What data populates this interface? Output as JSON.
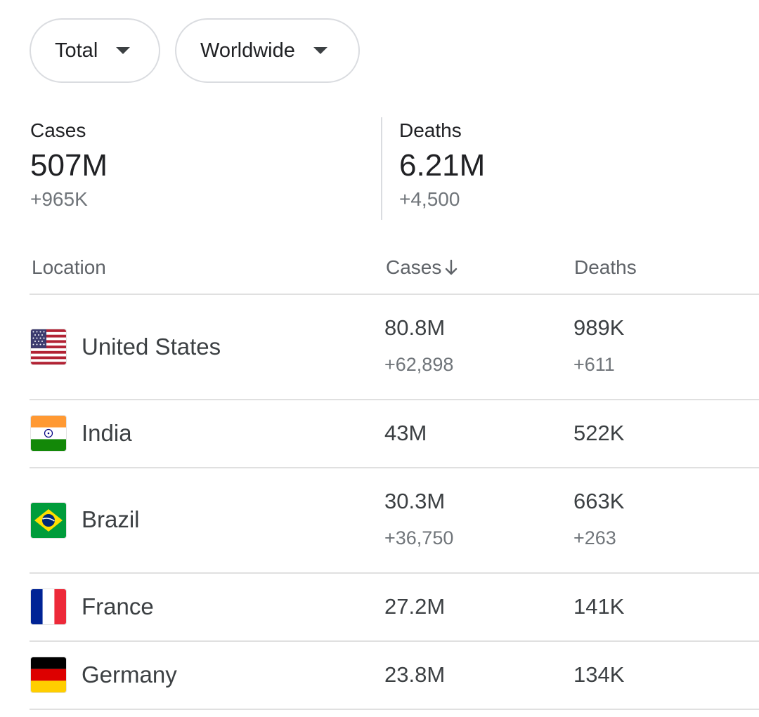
{
  "filters": {
    "metric": "Total",
    "region": "Worldwide"
  },
  "summary": {
    "cases": {
      "label": "Cases",
      "value": "507M",
      "delta": "+965K"
    },
    "deaths": {
      "label": "Deaths",
      "value": "6.21M",
      "delta": "+4,500"
    }
  },
  "table": {
    "headers": {
      "location": "Location",
      "cases": "Cases",
      "deaths": "Deaths"
    },
    "sort_icon": "arrow-down-icon",
    "rows": [
      {
        "flag": "us-flag-icon",
        "location": "United States",
        "cases": "80.8M",
        "cases_delta": "+62,898",
        "deaths": "989K",
        "deaths_delta": "+611"
      },
      {
        "flag": "india-flag-icon",
        "location": "India",
        "cases": "43M",
        "deaths": "522K"
      },
      {
        "flag": "brazil-flag-icon",
        "location": "Brazil",
        "cases": "30.3M",
        "cases_delta": "+36,750",
        "deaths": "663K",
        "deaths_delta": "+263"
      },
      {
        "flag": "france-flag-icon",
        "location": "France",
        "cases": "27.2M",
        "deaths": "141K"
      },
      {
        "flag": "germany-flag-icon",
        "location": "Germany",
        "cases": "23.8M",
        "deaths": "134K"
      }
    ]
  },
  "colors": {
    "text_primary": "#202124",
    "text_secondary": "#70757a",
    "divider": "#e0e0e0"
  }
}
